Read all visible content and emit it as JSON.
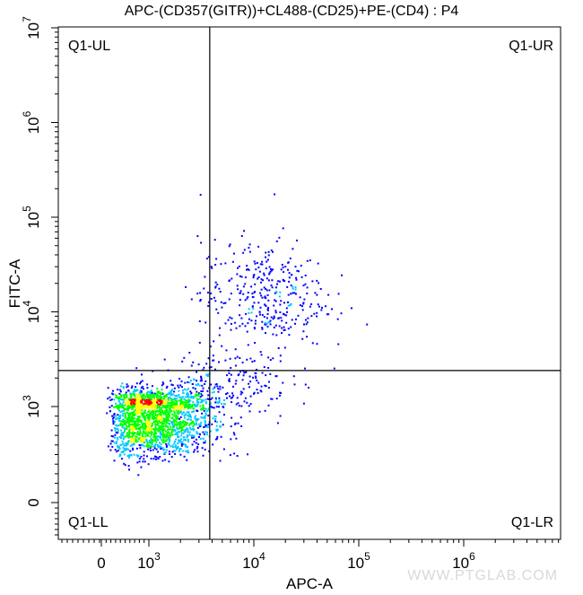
{
  "chart_data": {
    "type": "scatter",
    "title": "APC-(CD357(GITR))+CL488-(CD25)+PE-(CD4) : P4",
    "xlabel": "APC-A",
    "ylabel": "FITC-A",
    "x_scale": "biexponential",
    "y_scale": "biexponential",
    "x_ticks": [
      {
        "value": 0,
        "base": "0",
        "exp": ""
      },
      {
        "value": 1000,
        "base": "10",
        "exp": "3"
      },
      {
        "value": 10000,
        "base": "10",
        "exp": "4"
      },
      {
        "value": 100000,
        "base": "10",
        "exp": "5"
      },
      {
        "value": 1000000,
        "base": "10",
        "exp": "6"
      }
    ],
    "y_ticks": [
      {
        "value": 0,
        "base": "0",
        "exp": ""
      },
      {
        "value": 1000,
        "base": "10",
        "exp": "3"
      },
      {
        "value": 10000,
        "base": "10",
        "exp": "4"
      },
      {
        "value": 100000,
        "base": "10",
        "exp": "5"
      },
      {
        "value": 1000000,
        "base": "10",
        "exp": "6"
      },
      {
        "value": 10000000,
        "base": "10",
        "exp": "7"
      }
    ],
    "gate": {
      "x": 3800,
      "y": 2400
    },
    "quadrant_labels": {
      "ul": "Q1-UL",
      "ur": "Q1-UR",
      "ll": "Q1-LL",
      "lr": "Q1-LR"
    },
    "populations": [
      {
        "center": [
          1100,
          900
        ],
        "spread_log": [
          0.28,
          0.12
        ],
        "share": 0.78
      },
      {
        "center": [
          12000,
          15000
        ],
        "spread_log": [
          0.3,
          0.3
        ],
        "share": 0.14
      },
      {
        "center": [
          5500,
          1800
        ],
        "spread_log": [
          0.3,
          0.18
        ],
        "share": 0.08
      }
    ],
    "colormap": [
      "#0000ff",
      "#00c8ff",
      "#00ff00",
      "#ffff00",
      "#ff0000"
    ],
    "grid": false
  },
  "watermark": "WWW.PTGLAB.COM"
}
